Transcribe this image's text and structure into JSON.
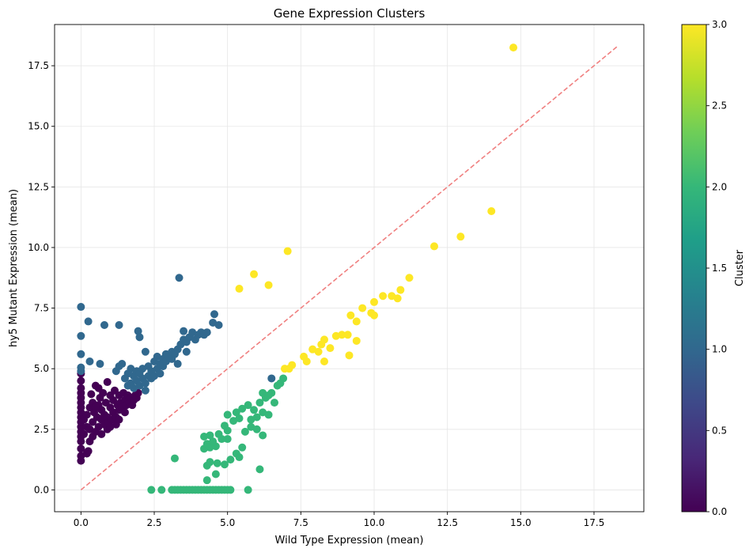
{
  "chart_data": {
    "type": "scatter",
    "title": "Gene Expression Clusters",
    "xlabel": "Wild Type Expression (mean)",
    "ylabel": "hy5 Mutant Expression (mean)",
    "xlim": [
      -0.9,
      19.2
    ],
    "ylim": [
      -0.9,
      19.2
    ],
    "x_ticks": [
      0.0,
      2.5,
      5.0,
      7.5,
      10.0,
      12.5,
      15.0,
      17.5
    ],
    "y_ticks": [
      0.0,
      2.5,
      5.0,
      7.5,
      10.0,
      12.5,
      15.0,
      17.5
    ],
    "x_tick_labels": [
      "0.0",
      "2.5",
      "5.0",
      "7.5",
      "10.0",
      "12.5",
      "15.0",
      "17.5"
    ],
    "y_tick_labels": [
      "0.0",
      "2.5",
      "5.0",
      "7.5",
      "10.0",
      "12.5",
      "15.0",
      "17.5"
    ],
    "grid": true,
    "reference_line": {
      "x": [
        0,
        18.3
      ],
      "y": [
        0,
        18.3
      ],
      "color": "#f08080",
      "style": "dashed"
    },
    "colorbar": {
      "label": "Cluster",
      "range": [
        0.0,
        3.0
      ],
      "ticks": [
        0.0,
        0.5,
        1.0,
        1.5,
        2.0,
        2.5,
        3.0
      ],
      "tick_labels": [
        "0.0",
        "0.5",
        "1.0",
        "1.5",
        "2.0",
        "2.5",
        "3.0"
      ],
      "colormap": "viridis",
      "stops": [
        "#440154",
        "#482878",
        "#3e4989",
        "#31688e",
        "#26828e",
        "#1f9e89",
        "#35b779",
        "#6ece58",
        "#b5de2b",
        "#fde725"
      ]
    },
    "series": [
      {
        "cluster": 0,
        "color": "#440154",
        "points": [
          [
            0.0,
            1.2
          ],
          [
            0.0,
            1.4
          ],
          [
            0.0,
            1.7
          ],
          [
            0.0,
            2.0
          ],
          [
            0.0,
            2.2
          ],
          [
            0.0,
            2.4
          ],
          [
            0.0,
            2.6
          ],
          [
            0.0,
            2.8
          ],
          [
            0.0,
            3.0
          ],
          [
            0.0,
            3.2
          ],
          [
            0.0,
            3.4
          ],
          [
            0.0,
            3.6
          ],
          [
            0.0,
            3.8
          ],
          [
            0.0,
            4.0
          ],
          [
            0.0,
            4.2
          ],
          [
            0.0,
            4.5
          ],
          [
            0.0,
            4.8
          ],
          [
            0.1,
            2.3
          ],
          [
            0.1,
            2.9
          ],
          [
            0.2,
            1.5
          ],
          [
            0.2,
            2.6
          ],
          [
            0.2,
            3.1
          ],
          [
            0.25,
            1.6
          ],
          [
            0.3,
            2.0
          ],
          [
            0.3,
            2.5
          ],
          [
            0.3,
            3.4
          ],
          [
            0.35,
            3.95
          ],
          [
            0.4,
            2.2
          ],
          [
            0.4,
            2.8
          ],
          [
            0.45,
            3.2
          ],
          [
            0.5,
            4.3
          ],
          [
            0.5,
            2.4
          ],
          [
            0.55,
            3.0
          ],
          [
            0.6,
            2.6
          ],
          [
            0.6,
            3.5
          ],
          [
            0.65,
            3.8
          ],
          [
            0.7,
            2.9
          ],
          [
            0.7,
            3.3
          ],
          [
            0.75,
            4.0
          ],
          [
            0.8,
            2.7
          ],
          [
            0.8,
            3.1
          ],
          [
            0.85,
            3.6
          ],
          [
            0.9,
            4.45
          ],
          [
            0.9,
            3.0
          ],
          [
            0.95,
            2.8
          ],
          [
            1.0,
            3.4
          ],
          [
            1.0,
            3.9
          ],
          [
            1.05,
            2.9
          ],
          [
            1.1,
            3.2
          ],
          [
            1.1,
            3.7
          ],
          [
            1.15,
            4.1
          ],
          [
            1.2,
            3.0
          ],
          [
            1.25,
            3.5
          ],
          [
            1.3,
            3.3
          ],
          [
            1.3,
            3.9
          ],
          [
            1.35,
            3.6
          ],
          [
            1.4,
            3.4
          ],
          [
            1.45,
            4.0
          ],
          [
            1.5,
            3.2
          ],
          [
            1.5,
            3.7
          ],
          [
            1.55,
            3.5
          ],
          [
            1.6,
            3.9
          ],
          [
            1.65,
            3.6
          ],
          [
            1.7,
            3.8
          ],
          [
            1.75,
            3.5
          ],
          [
            1.8,
            3.7
          ],
          [
            1.85,
            3.9
          ],
          [
            1.9,
            3.8
          ],
          [
            1.95,
            4.0
          ],
          [
            0.6,
            4.2
          ],
          [
            0.9,
            2.5
          ],
          [
            1.2,
            2.7
          ],
          [
            0.4,
            3.6
          ],
          [
            0.7,
            2.3
          ],
          [
            1.0,
            2.6
          ],
          [
            1.3,
            2.9
          ],
          [
            0.5,
            3.4
          ]
        ]
      },
      {
        "cluster": 1,
        "color": "#31688e",
        "points": [
          [
            0.0,
            4.9
          ],
          [
            0.0,
            5.05
          ],
          [
            0.0,
            5.6
          ],
          [
            0.0,
            6.35
          ],
          [
            0.0,
            7.55
          ],
          [
            0.25,
            6.95
          ],
          [
            0.3,
            5.3
          ],
          [
            0.65,
            5.2
          ],
          [
            0.8,
            6.8
          ],
          [
            1.3,
            6.8
          ],
          [
            1.2,
            4.9
          ],
          [
            1.3,
            5.1
          ],
          [
            1.4,
            5.2
          ],
          [
            1.5,
            4.6
          ],
          [
            1.6,
            4.3
          ],
          [
            1.6,
            4.8
          ],
          [
            1.7,
            4.4
          ],
          [
            1.7,
            5.0
          ],
          [
            1.8,
            4.7
          ],
          [
            1.8,
            4.2
          ],
          [
            1.9,
            4.5
          ],
          [
            1.9,
            4.9
          ],
          [
            1.95,
            6.55
          ],
          [
            2.0,
            6.3
          ],
          [
            2.0,
            4.3
          ],
          [
            2.0,
            4.8
          ],
          [
            2.1,
            4.6
          ],
          [
            2.1,
            5.0
          ],
          [
            2.2,
            5.7
          ],
          [
            2.2,
            4.4
          ],
          [
            2.3,
            4.7
          ],
          [
            2.3,
            5.1
          ],
          [
            2.4,
            4.6
          ],
          [
            2.4,
            4.9
          ],
          [
            2.5,
            4.7
          ],
          [
            2.5,
            5.3
          ],
          [
            2.6,
            5.0
          ],
          [
            2.6,
            5.5
          ],
          [
            2.7,
            5.2
          ],
          [
            2.7,
            4.8
          ],
          [
            2.8,
            5.4
          ],
          [
            2.8,
            5.1
          ],
          [
            2.9,
            5.6
          ],
          [
            2.9,
            5.3
          ],
          [
            3.0,
            5.5
          ],
          [
            3.1,
            5.4
          ],
          [
            3.1,
            5.7
          ],
          [
            3.2,
            5.6
          ],
          [
            3.3,
            5.8
          ],
          [
            3.35,
            8.75
          ],
          [
            3.4,
            6.0
          ],
          [
            3.5,
            6.55
          ],
          [
            3.5,
            6.2
          ],
          [
            3.6,
            6.1
          ],
          [
            3.7,
            6.3
          ],
          [
            3.8,
            6.5
          ],
          [
            3.9,
            6.2
          ],
          [
            4.0,
            6.4
          ],
          [
            4.1,
            6.5
          ],
          [
            4.2,
            6.4
          ],
          [
            4.3,
            6.5
          ],
          [
            4.5,
            6.9
          ],
          [
            4.55,
            7.25
          ],
          [
            4.7,
            6.8
          ],
          [
            6.5,
            4.6
          ],
          [
            3.3,
            5.2
          ],
          [
            3.6,
            5.7
          ],
          [
            2.2,
            4.1
          ]
        ]
      },
      {
        "cluster": 2,
        "color": "#35b779",
        "points": [
          [
            2.4,
            0.0
          ],
          [
            2.75,
            0.0
          ],
          [
            3.1,
            0.0
          ],
          [
            3.2,
            0.0
          ],
          [
            3.3,
            0.0
          ],
          [
            3.4,
            0.0
          ],
          [
            3.5,
            0.0
          ],
          [
            3.6,
            0.0
          ],
          [
            3.7,
            0.0
          ],
          [
            3.8,
            0.0
          ],
          [
            3.9,
            0.0
          ],
          [
            4.0,
            0.0
          ],
          [
            4.1,
            0.0
          ],
          [
            4.2,
            0.0
          ],
          [
            4.3,
            0.0
          ],
          [
            4.4,
            0.0
          ],
          [
            4.5,
            0.0
          ],
          [
            4.6,
            0.0
          ],
          [
            4.7,
            0.0
          ],
          [
            4.8,
            0.0
          ],
          [
            4.9,
            0.0
          ],
          [
            5.0,
            0.0
          ],
          [
            5.1,
            0.0
          ],
          [
            5.7,
            0.0
          ],
          [
            4.3,
            0.4
          ],
          [
            4.6,
            0.65
          ],
          [
            6.1,
            0.85
          ],
          [
            4.3,
            1.0
          ],
          [
            4.4,
            1.15
          ],
          [
            4.65,
            1.1
          ],
          [
            4.9,
            1.05
          ],
          [
            5.1,
            1.25
          ],
          [
            3.2,
            1.3
          ],
          [
            4.2,
            1.7
          ],
          [
            4.4,
            1.75
          ],
          [
            4.6,
            1.8
          ],
          [
            4.3,
            1.9
          ],
          [
            4.5,
            2.0
          ],
          [
            4.8,
            2.1
          ],
          [
            5.0,
            2.1
          ],
          [
            4.2,
            2.2
          ],
          [
            4.4,
            2.25
          ],
          [
            4.7,
            2.3
          ],
          [
            5.0,
            2.45
          ],
          [
            5.3,
            1.5
          ],
          [
            5.5,
            1.75
          ],
          [
            5.4,
            1.35
          ],
          [
            5.6,
            2.4
          ],
          [
            5.8,
            2.6
          ],
          [
            6.0,
            2.5
          ],
          [
            6.2,
            2.25
          ],
          [
            4.9,
            2.65
          ],
          [
            5.2,
            2.85
          ],
          [
            5.4,
            2.95
          ],
          [
            5.0,
            3.1
          ],
          [
            5.3,
            3.2
          ],
          [
            5.5,
            3.35
          ],
          [
            5.7,
            3.5
          ],
          [
            5.9,
            3.3
          ],
          [
            6.1,
            3.6
          ],
          [
            6.3,
            3.8
          ],
          [
            6.5,
            4.0
          ],
          [
            6.7,
            4.3
          ],
          [
            6.9,
            4.6
          ],
          [
            5.8,
            2.9
          ],
          [
            6.0,
            3.0
          ],
          [
            6.2,
            3.2
          ],
          [
            6.4,
            3.1
          ],
          [
            6.6,
            3.6
          ],
          [
            6.8,
            4.4
          ],
          [
            6.2,
            4.0
          ],
          [
            6.4,
            3.9
          ]
        ]
      },
      {
        "cluster": 3,
        "color": "#fde725",
        "points": [
          [
            5.4,
            8.3
          ],
          [
            5.9,
            8.9
          ],
          [
            6.4,
            8.45
          ],
          [
            7.05,
            9.85
          ],
          [
            6.95,
            5.0
          ],
          [
            7.1,
            5.0
          ],
          [
            7.2,
            5.15
          ],
          [
            7.6,
            5.5
          ],
          [
            7.7,
            5.3
          ],
          [
            7.9,
            5.8
          ],
          [
            8.1,
            5.7
          ],
          [
            8.2,
            6.0
          ],
          [
            8.3,
            6.2
          ],
          [
            8.3,
            5.3
          ],
          [
            8.5,
            5.85
          ],
          [
            8.7,
            6.35
          ],
          [
            8.9,
            6.4
          ],
          [
            9.1,
            6.4
          ],
          [
            9.15,
            5.55
          ],
          [
            9.2,
            7.2
          ],
          [
            9.4,
            6.95
          ],
          [
            9.4,
            6.15
          ],
          [
            9.6,
            7.5
          ],
          [
            9.9,
            7.3
          ],
          [
            10.0,
            7.2
          ],
          [
            10.0,
            7.75
          ],
          [
            10.3,
            8.0
          ],
          [
            10.6,
            8.0
          ],
          [
            10.8,
            7.9
          ],
          [
            10.9,
            8.25
          ],
          [
            11.2,
            8.75
          ],
          [
            12.05,
            10.05
          ],
          [
            12.95,
            10.45
          ],
          [
            14.0,
            11.5
          ],
          [
            14.75,
            18.25
          ]
        ]
      }
    ]
  }
}
